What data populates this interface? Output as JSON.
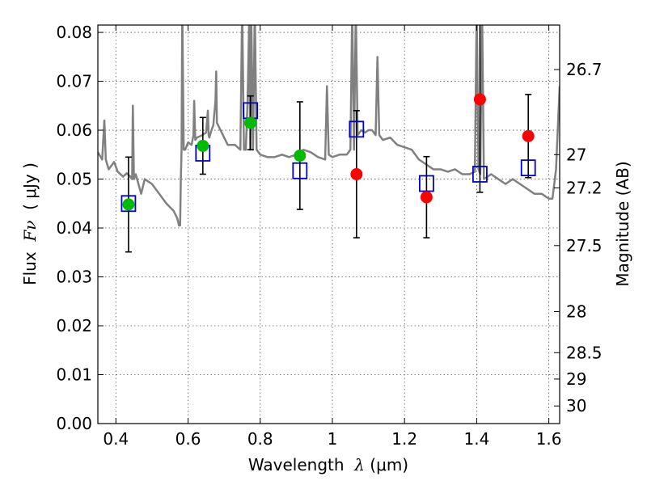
{
  "chart_data": {
    "type": "scatter",
    "xlabel_pre": "Wavelength  ",
    "xlabel_sym": "λ",
    "xlabel_post": " (μm)",
    "ylabel_pre": "Flux  ",
    "ylabel_sym": "Fν",
    "ylabel_post": "  ( μJy )",
    "y2label": "Magnitude (AB)",
    "xlim": [
      0.35,
      1.63
    ],
    "ylim": [
      0.0,
      0.0815
    ],
    "grid": true,
    "x_ticks": [
      0.4,
      0.6,
      0.8,
      1.0,
      1.2,
      1.4,
      1.6
    ],
    "x_tick_labels": [
      "0.4",
      "0.6",
      "0.8",
      "1",
      "1.2",
      "1.4",
      "1.6"
    ],
    "y_ticks": [
      0.0,
      0.01,
      0.02,
      0.03,
      0.04,
      0.05,
      0.06,
      0.07,
      0.08
    ],
    "y_tick_labels": [
      "0.00",
      "0.01",
      "0.02",
      "0.03",
      "0.04",
      "0.05",
      "0.06",
      "0.07",
      "0.08"
    ],
    "mag_ticks": [
      {
        "flux": 0.0724,
        "label": "26.7"
      },
      {
        "flux": 0.055,
        "label": "27"
      },
      {
        "flux": 0.0482,
        "label": "27.2"
      },
      {
        "flux": 0.0364,
        "label": "27.5"
      },
      {
        "flux": 0.0229,
        "label": "28"
      },
      {
        "flux": 0.0145,
        "label": "28.5"
      },
      {
        "flux": 0.0091,
        "label": "29"
      },
      {
        "flux": 0.0036,
        "label": "30"
      }
    ],
    "colors": {
      "spectrum": "#808080",
      "model_box": "#0000cc",
      "green_points": "#00bb00",
      "red_points": "#ff0000",
      "errorbars": "#000000",
      "grid": "#555555"
    },
    "model_photometry": {
      "x": [
        0.435,
        0.641,
        0.773,
        0.91,
        1.067,
        1.261,
        1.409,
        1.543
      ],
      "y": [
        0.045,
        0.0553,
        0.064,
        0.0517,
        0.0602,
        0.0491,
        0.051,
        0.0523
      ]
    },
    "observed_green": {
      "x": [
        0.435,
        0.641,
        0.773,
        0.91
      ],
      "y": [
        0.0448,
        0.0568,
        0.0615,
        0.0548
      ],
      "yerr_low": [
        0.0097,
        0.0058,
        0.0055,
        0.011
      ],
      "yerr_high": [
        0.0097,
        0.0058,
        0.0055,
        0.011
      ]
    },
    "observed_red": {
      "x": [
        1.067,
        1.261,
        1.409,
        1.543
      ],
      "y": [
        0.051,
        0.0463,
        0.0663,
        0.0588
      ],
      "yerr_low": [
        0.013,
        0.0083,
        0.019,
        0.0085
      ],
      "yerr_high": [
        0.013,
        0.0083,
        0.019,
        0.0085
      ]
    },
    "spectrum": {
      "x": [
        0.35,
        0.362,
        0.368,
        0.372,
        0.38,
        0.395,
        0.405,
        0.42,
        0.43,
        0.44,
        0.445,
        0.447,
        0.45,
        0.455,
        0.47,
        0.48,
        0.5,
        0.52,
        0.54,
        0.56,
        0.57,
        0.575,
        0.578,
        0.58,
        0.582,
        0.584,
        0.588,
        0.592,
        0.6,
        0.61,
        0.615,
        0.617,
        0.62,
        0.625,
        0.64,
        0.65,
        0.655,
        0.657,
        0.659,
        0.665,
        0.67,
        0.676,
        0.678,
        0.68,
        0.69,
        0.71,
        0.73,
        0.745,
        0.75,
        0.755,
        0.76,
        0.765,
        0.77,
        0.772,
        0.775,
        0.78,
        0.785,
        0.79,
        0.795,
        0.8,
        0.82,
        0.84,
        0.86,
        0.88,
        0.9,
        0.92,
        0.94,
        0.96,
        0.98,
        0.985,
        0.99,
        1.0,
        1.02,
        1.04,
        1.05,
        1.055,
        1.06,
        1.065,
        1.07,
        1.08,
        1.09,
        1.1,
        1.11,
        1.12,
        1.125,
        1.13,
        1.14,
        1.16,
        1.18,
        1.2,
        1.22,
        1.24,
        1.26,
        1.28,
        1.3,
        1.32,
        1.34,
        1.36,
        1.38,
        1.395,
        1.4,
        1.405,
        1.41,
        1.415,
        1.42,
        1.44,
        1.46,
        1.48,
        1.5,
        1.52,
        1.54,
        1.56,
        1.58,
        1.6,
        1.61,
        1.62,
        1.63
      ],
      "y": [
        0.0555,
        0.054,
        0.062,
        0.054,
        0.052,
        0.0535,
        0.0515,
        0.0505,
        0.0512,
        0.0505,
        0.05,
        0.065,
        0.05,
        0.051,
        0.047,
        0.05,
        0.049,
        0.047,
        0.045,
        0.0435,
        0.042,
        0.0405,
        0.0405,
        0.05,
        0.056,
        0.085,
        0.056,
        0.056,
        0.0575,
        0.057,
        0.059,
        0.066,
        0.058,
        0.0585,
        0.059,
        0.0595,
        0.064,
        0.059,
        0.0585,
        0.06,
        0.061,
        0.066,
        0.072,
        0.0615,
        0.06,
        0.057,
        0.057,
        0.056,
        0.085,
        0.056,
        0.056,
        0.066,
        0.085,
        0.056,
        0.085,
        0.056,
        0.085,
        0.056,
        0.0555,
        0.055,
        0.0545,
        0.0545,
        0.055,
        0.0545,
        0.055,
        0.056,
        0.0555,
        0.0545,
        0.054,
        0.069,
        0.055,
        0.0545,
        0.055,
        0.055,
        0.056,
        0.085,
        0.056,
        0.085,
        0.059,
        0.06,
        0.0595,
        0.06,
        0.06,
        0.059,
        0.075,
        0.059,
        0.058,
        0.0585,
        0.057,
        0.0565,
        0.056,
        0.054,
        0.053,
        0.052,
        0.052,
        0.0515,
        0.052,
        0.051,
        0.051,
        0.0515,
        0.085,
        0.052,
        0.051,
        0.085,
        0.05,
        0.051,
        0.05,
        0.049,
        0.05,
        0.049,
        0.048,
        0.047,
        0.047,
        0.046,
        0.046,
        0.052,
        0.069
      ]
    }
  }
}
